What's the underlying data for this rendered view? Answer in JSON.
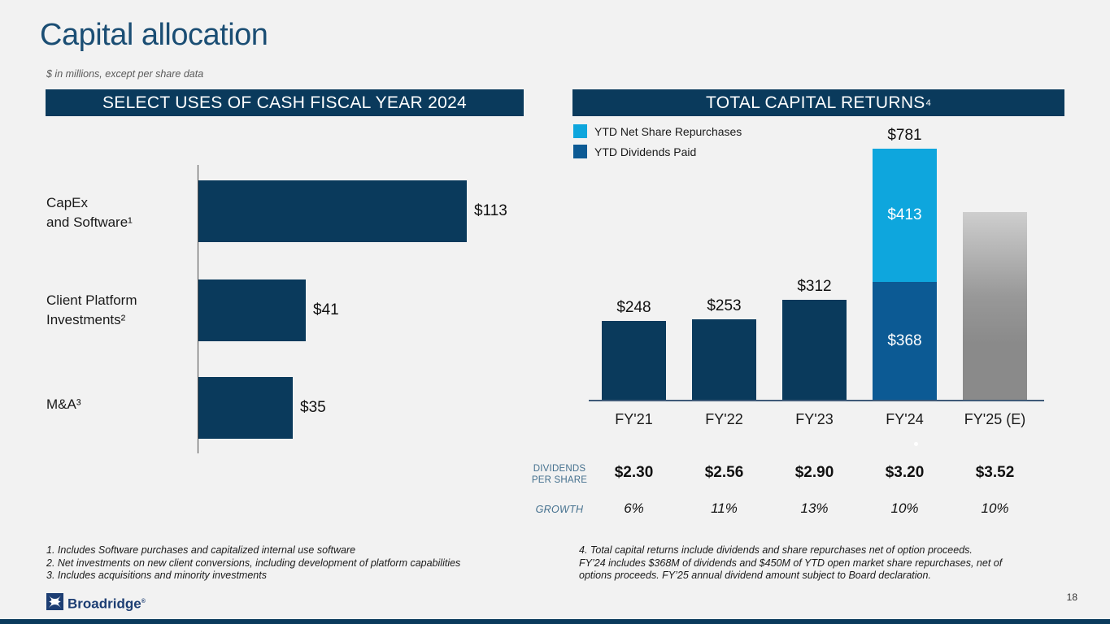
{
  "slide": {
    "title": "Capital allocation",
    "subtitle": "$ in millions, except per share data",
    "page_number": "18",
    "logo_text": "Broadridge",
    "logo_reg_mark": "®",
    "colors": {
      "navy": "#0a3a5c",
      "dividends_blue": "#0c5a94",
      "repurchases_blue": "#0ea6dd",
      "gray_bar_top": "#cecece",
      "gray_bar_bottom": "#8a8a8a",
      "title_blue": "#1b4e74",
      "table_label_blue": "#44708e",
      "background": "#f2f2f2"
    }
  },
  "left_panel": {
    "header": "SELECT USES OF CASH FISCAL YEAR 2024"
  },
  "right_panel": {
    "header": "TOTAL CAPITAL RETURNS",
    "header_sup": "4",
    "legend": [
      {
        "label": "YTD Net Share Repurchases",
        "color": "#0ea6dd"
      },
      {
        "label": "YTD Dividends Paid",
        "color": "#0c5a94"
      }
    ]
  },
  "chart_data": [
    {
      "type": "bar",
      "orientation": "horizontal",
      "title": "SELECT USES OF CASH FISCAL YEAR 2024",
      "unit": "$ millions",
      "categories": [
        "CapEx and Software¹",
        "Client Platform Investments²",
        "M&A³"
      ],
      "category_lines": [
        [
          "CapEx",
          "and Software¹"
        ],
        [
          "Client Platform",
          "Investments²"
        ],
        [
          "M&A³"
        ]
      ],
      "values": [
        113,
        41,
        35
      ],
      "value_labels": [
        "$113",
        "$41",
        "$35"
      ],
      "bar_color": "#0a3a5c",
      "xlim": [
        0,
        120
      ],
      "grid": false
    },
    {
      "type": "bar",
      "stacked": true,
      "title": "TOTAL CAPITAL RETURNS⁴",
      "unit": "$ millions",
      "categories": [
        "FY'21",
        "FY'22",
        "FY'23",
        "FY'24",
        "FY'25 (E)"
      ],
      "series": [
        {
          "name": "YTD Dividends Paid",
          "color": "#0c5a94",
          "values": [
            248,
            253,
            312,
            368,
            null
          ]
        },
        {
          "name": "YTD Net Share Repurchases",
          "color": "#0ea6dd",
          "values": [
            null,
            null,
            null,
            413,
            null
          ]
        }
      ],
      "totals": [
        248,
        253,
        312,
        781,
        null
      ],
      "total_labels": [
        "$248",
        "$253",
        "$312",
        "$781",
        ""
      ],
      "segment_labels": [
        null,
        null,
        null,
        {
          "dividends": "$368",
          "repurchases": "$413"
        },
        null
      ],
      "estimate_bar": {
        "category": "FY'25 (E)",
        "approx_value": 585,
        "style": "gray-gradient"
      },
      "ylim": [
        0,
        800
      ],
      "grid": false,
      "legend_position": "top-left",
      "rows": [
        {
          "name": "dividends_per_share",
          "label": "DIVIDENDS PER SHARE",
          "values": [
            "$2.30",
            "$2.56",
            "$2.90",
            "$3.20",
            "$3.52"
          ]
        },
        {
          "name": "growth",
          "label": "GROWTH",
          "values": [
            "6%",
            "11%",
            "13%",
            "10%",
            "10%"
          ]
        }
      ]
    }
  ],
  "footnotes_left": [
    "1. Includes Software purchases and capitalized internal use software",
    "2. Net investments on new client conversions, including development of platform capabilities",
    "3. Includes acquisitions and minority investments"
  ],
  "footnote_right_lines": [
    "4. Total capital returns include dividends and share repurchases net of option proceeds.",
    "FY’24 includes $368M of dividends and $450M of YTD open market share repurchases, net of",
    "options proceeds. FY’25 annual dividend amount subject to Board declaration."
  ]
}
